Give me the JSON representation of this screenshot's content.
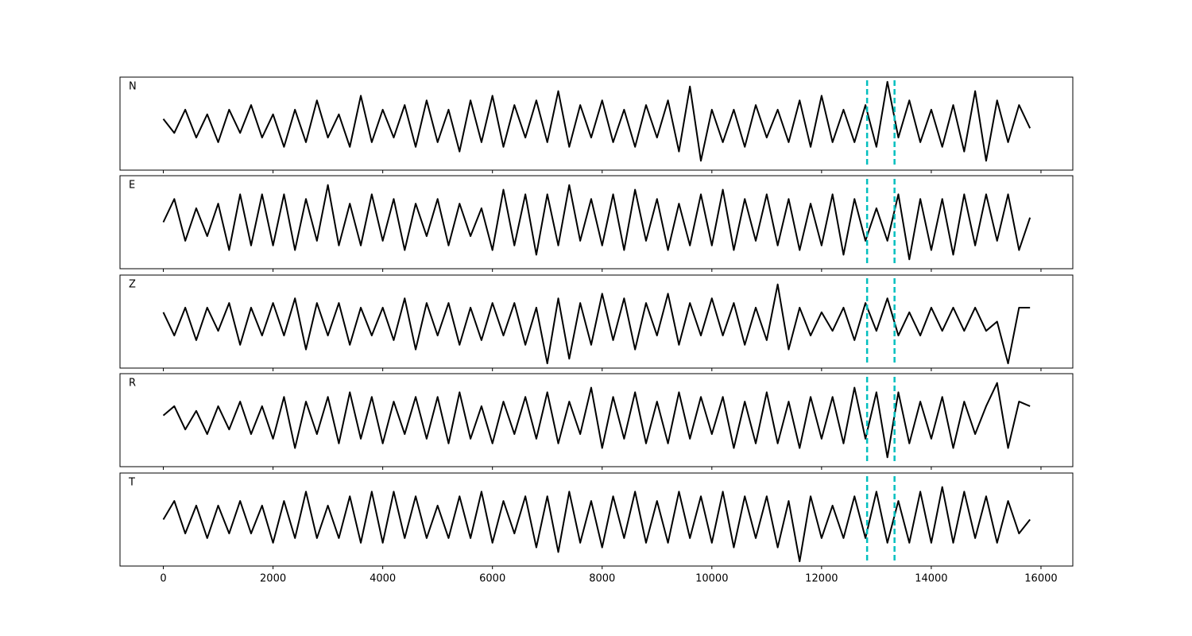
{
  "chart_data": {
    "type": "line",
    "x": [
      0,
      200,
      400,
      600,
      800,
      1000,
      1200,
      1400,
      1600,
      1800,
      2000,
      2200,
      2400,
      2600,
      2800,
      3000,
      3200,
      3400,
      3600,
      3800,
      4000,
      4200,
      4400,
      4600,
      4800,
      5000,
      5200,
      5400,
      5600,
      5800,
      6000,
      6200,
      6400,
      6600,
      6800,
      7000,
      7200,
      7400,
      7600,
      7800,
      8000,
      8200,
      8400,
      8600,
      8800,
      9000,
      9200,
      9400,
      9600,
      9800,
      10000,
      10200,
      10400,
      10600,
      10800,
      11000,
      11200,
      11400,
      11600,
      11800,
      12000,
      12200,
      12400,
      12600,
      12800,
      13000,
      13200,
      13400,
      13600,
      13800,
      14000,
      14200,
      14400,
      14600,
      14800,
      15000,
      15200,
      15400,
      15600,
      15800
    ],
    "xlim": [
      -790,
      16580
    ],
    "xticks": [
      0,
      2000,
      4000,
      6000,
      8000,
      10000,
      12000,
      14000,
      16000
    ],
    "ylim": [
      -1,
      1
    ],
    "vlines": [
      12830,
      13330
    ],
    "vline_color": "#00bfbf",
    "series": [
      {
        "name": "N",
        "color": "#000000",
        "values": [
          0.1,
          -0.2,
          0.3,
          -0.3,
          0.2,
          -0.4,
          0.3,
          -0.2,
          0.4,
          -0.3,
          0.2,
          -0.5,
          0.3,
          -0.4,
          0.5,
          -0.3,
          0.2,
          -0.5,
          0.6,
          -0.4,
          0.3,
          -0.3,
          0.4,
          -0.5,
          0.5,
          -0.4,
          0.3,
          -0.6,
          0.5,
          -0.4,
          0.6,
          -0.5,
          0.4,
          -0.3,
          0.5,
          -0.4,
          0.7,
          -0.5,
          0.4,
          -0.3,
          0.5,
          -0.4,
          0.3,
          -0.5,
          0.4,
          -0.3,
          0.5,
          -0.6,
          0.8,
          -0.8,
          0.3,
          -0.4,
          0.3,
          -0.5,
          0.4,
          -0.3,
          0.3,
          -0.4,
          0.5,
          -0.5,
          0.6,
          -0.4,
          0.3,
          -0.4,
          0.4,
          -0.5,
          0.9,
          -0.3,
          0.5,
          -0.4,
          0.3,
          -0.5,
          0.4,
          -0.6,
          0.7,
          -0.8,
          0.5,
          -0.4,
          0.4,
          -0.1
        ]
      },
      {
        "name": "E",
        "color": "#000000",
        "values": [
          0.0,
          0.5,
          -0.4,
          0.3,
          -0.3,
          0.4,
          -0.6,
          0.6,
          -0.5,
          0.6,
          -0.5,
          0.6,
          -0.6,
          0.5,
          -0.4,
          0.8,
          -0.5,
          0.4,
          -0.5,
          0.6,
          -0.4,
          0.5,
          -0.6,
          0.4,
          -0.3,
          0.5,
          -0.5,
          0.4,
          -0.3,
          0.3,
          -0.6,
          0.7,
          -0.5,
          0.6,
          -0.7,
          0.6,
          -0.5,
          0.8,
          -0.4,
          0.5,
          -0.5,
          0.6,
          -0.6,
          0.7,
          -0.4,
          0.5,
          -0.6,
          0.4,
          -0.5,
          0.6,
          -0.5,
          0.7,
          -0.6,
          0.5,
          -0.4,
          0.6,
          -0.5,
          0.5,
          -0.6,
          0.4,
          -0.5,
          0.6,
          -0.7,
          0.5,
          -0.4,
          0.3,
          -0.4,
          0.6,
          -0.8,
          0.5,
          -0.6,
          0.5,
          -0.7,
          0.6,
          -0.5,
          0.6,
          -0.4,
          0.6,
          -0.6,
          0.1
        ]
      },
      {
        "name": "Z",
        "color": "#000000",
        "values": [
          0.2,
          -0.3,
          0.3,
          -0.4,
          0.3,
          -0.2,
          0.4,
          -0.5,
          0.3,
          -0.3,
          0.4,
          -0.3,
          0.5,
          -0.6,
          0.4,
          -0.3,
          0.4,
          -0.5,
          0.3,
          -0.3,
          0.3,
          -0.4,
          0.5,
          -0.6,
          0.4,
          -0.3,
          0.4,
          -0.5,
          0.3,
          -0.4,
          0.4,
          -0.3,
          0.4,
          -0.5,
          0.3,
          -0.9,
          0.5,
          -0.8,
          0.4,
          -0.5,
          0.6,
          -0.4,
          0.5,
          -0.6,
          0.4,
          -0.3,
          0.6,
          -0.5,
          0.4,
          -0.3,
          0.5,
          -0.3,
          0.4,
          -0.5,
          0.3,
          -0.4,
          0.8,
          -0.6,
          0.3,
          -0.3,
          0.2,
          -0.2,
          0.3,
          -0.4,
          0.4,
          -0.2,
          0.5,
          -0.3,
          0.2,
          -0.3,
          0.3,
          -0.2,
          0.3,
          -0.2,
          0.3,
          -0.2,
          0.0,
          -0.9,
          0.3,
          0.3
        ]
      },
      {
        "name": "R",
        "color": "#000000",
        "values": [
          0.1,
          0.3,
          -0.2,
          0.2,
          -0.3,
          0.3,
          -0.2,
          0.4,
          -0.3,
          0.3,
          -0.4,
          0.5,
          -0.6,
          0.4,
          -0.3,
          0.5,
          -0.5,
          0.6,
          -0.4,
          0.5,
          -0.5,
          0.4,
          -0.3,
          0.5,
          -0.4,
          0.5,
          -0.5,
          0.6,
          -0.4,
          0.3,
          -0.5,
          0.4,
          -0.3,
          0.5,
          -0.4,
          0.6,
          -0.5,
          0.4,
          -0.3,
          0.7,
          -0.6,
          0.5,
          -0.4,
          0.6,
          -0.5,
          0.4,
          -0.5,
          0.6,
          -0.4,
          0.5,
          -0.3,
          0.5,
          -0.6,
          0.4,
          -0.5,
          0.6,
          -0.5,
          0.4,
          -0.6,
          0.5,
          -0.4,
          0.5,
          -0.5,
          0.7,
          -0.4,
          0.6,
          -0.8,
          0.6,
          -0.5,
          0.4,
          -0.4,
          0.5,
          -0.6,
          0.4,
          -0.3,
          0.3,
          0.8,
          -0.6,
          0.4,
          0.3
        ]
      },
      {
        "name": "T",
        "color": "#000000",
        "values": [
          0.0,
          0.4,
          -0.3,
          0.3,
          -0.4,
          0.3,
          -0.3,
          0.4,
          -0.3,
          0.3,
          -0.5,
          0.4,
          -0.4,
          0.6,
          -0.4,
          0.3,
          -0.4,
          0.5,
          -0.5,
          0.6,
          -0.5,
          0.6,
          -0.4,
          0.5,
          -0.4,
          0.3,
          -0.4,
          0.5,
          -0.4,
          0.6,
          -0.5,
          0.4,
          -0.3,
          0.5,
          -0.6,
          0.5,
          -0.7,
          0.6,
          -0.5,
          0.4,
          -0.6,
          0.5,
          -0.4,
          0.6,
          -0.5,
          0.4,
          -0.5,
          0.6,
          -0.4,
          0.5,
          -0.5,
          0.6,
          -0.6,
          0.5,
          -0.4,
          0.5,
          -0.6,
          0.4,
          -0.9,
          0.5,
          -0.4,
          0.3,
          -0.4,
          0.5,
          -0.4,
          0.6,
          -0.5,
          0.4,
          -0.5,
          0.6,
          -0.5,
          0.7,
          -0.5,
          0.6,
          -0.4,
          0.5,
          -0.5,
          0.4,
          -0.3,
          0.0
        ]
      }
    ]
  }
}
